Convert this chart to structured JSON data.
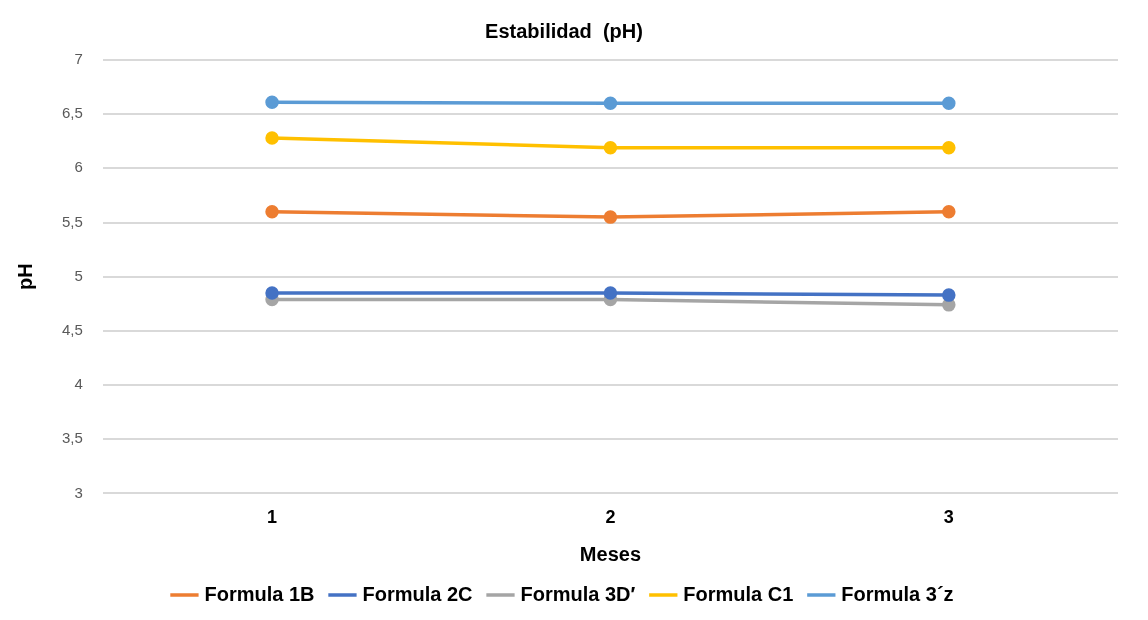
{
  "chart_data": {
    "type": "line",
    "title": "Estabilidad  (pH)",
    "xlabel": "Meses",
    "ylabel": "pH",
    "categories": [
      "1",
      "2",
      "3"
    ],
    "series": [
      {
        "name": "Formula 1B",
        "color": "#ed7d31",
        "values": [
          5.6,
          5.55,
          5.6
        ]
      },
      {
        "name": "Formula 2C",
        "color": "#4472c4",
        "values": [
          4.85,
          4.85,
          4.83
        ]
      },
      {
        "name": "Formula 3D′",
        "color": "#a5a5a5",
        "values": [
          4.79,
          4.79,
          4.74
        ]
      },
      {
        "name": "Formula C1",
        "color": "#ffc000",
        "values": [
          6.28,
          6.19,
          6.19
        ]
      },
      {
        "name": "Formula 3´z",
        "color": "#5b9bd5",
        "values": [
          6.61,
          6.6,
          6.6
        ]
      }
    ],
    "ylim": [
      3,
      7
    ],
    "yticks": [
      3,
      {
        "value": 3.5,
        "label": "3,5"
      },
      4,
      {
        "value": 4.5,
        "label": "4,5"
      },
      5,
      {
        "value": 5.5,
        "label": "5,5"
      },
      6,
      {
        "value": 6.5,
        "label": "6,5"
      },
      7
    ],
    "grid": "y",
    "legend": "bottom",
    "marker": "circle",
    "line_style": "solid"
  }
}
